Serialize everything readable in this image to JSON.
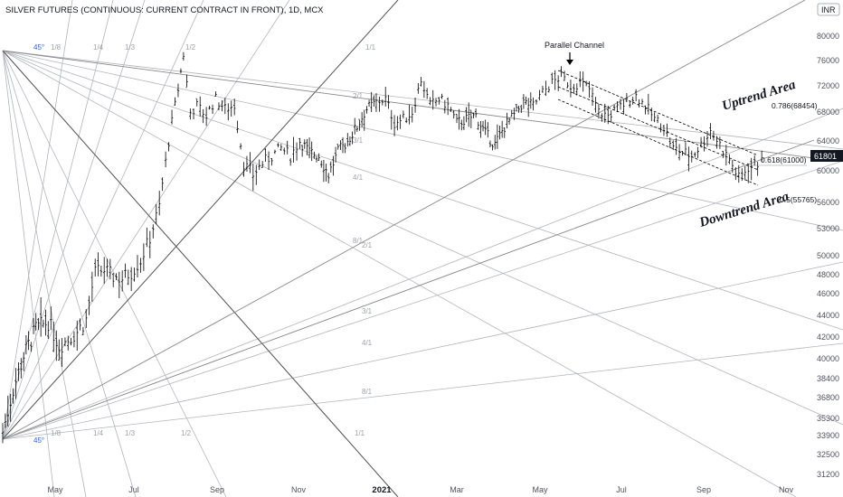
{
  "header": {
    "title": "SILVER FUTURES (CONTINUOUS: CURRENT CONTRACT IN FRONT), 1D, MCX",
    "currency": "INR"
  },
  "colors": {
    "bars": "#000000",
    "grid_lines": "#b2b5be",
    "price_tag_bg": "#131722",
    "fan_label": "#9ea2ad",
    "angle_label": "#2962ff"
  },
  "chart_data": {
    "type": "ohlc",
    "xlabel": "",
    "ylabel": "",
    "x_ticks": [
      "May",
      "Jul",
      "Sep",
      "Nov",
      "2021",
      "Mar",
      "May",
      "Jul",
      "Sep",
      "Nov"
    ],
    "y_ticks": [
      80000,
      76000,
      72000,
      68000,
      64000,
      60000,
      56000,
      53000,
      50000,
      48000,
      46000,
      44000,
      42000,
      40000,
      38400,
      36800,
      35300,
      33900,
      32500,
      31200
    ],
    "last_price": "61801",
    "price_path": [
      {
        "date": "2020-04-01",
        "close": 34200
      },
      {
        "date": "2020-04-07",
        "close": 37500
      },
      {
        "date": "2020-04-13",
        "close": 40300
      },
      {
        "date": "2020-04-20",
        "close": 42800
      },
      {
        "date": "2020-04-27",
        "close": 43400
      },
      {
        "date": "2020-05-04",
        "close": 41200
      },
      {
        "date": "2020-05-11",
        "close": 41800
      },
      {
        "date": "2020-05-18",
        "close": 42500
      },
      {
        "date": "2020-05-25",
        "close": 43600
      },
      {
        "date": "2020-06-01",
        "close": 48200
      },
      {
        "date": "2020-06-08",
        "close": 48500
      },
      {
        "date": "2020-06-15",
        "close": 47800
      },
      {
        "date": "2020-06-22",
        "close": 47600
      },
      {
        "date": "2020-06-29",
        "close": 48300
      },
      {
        "date": "2020-07-06",
        "close": 49500
      },
      {
        "date": "2020-07-13",
        "close": 52000
      },
      {
        "date": "2020-07-20",
        "close": 55500
      },
      {
        "date": "2020-07-27",
        "close": 64000
      },
      {
        "date": "2020-08-03",
        "close": 71500
      },
      {
        "date": "2020-08-07",
        "close": 77000
      },
      {
        "date": "2020-08-12",
        "close": 68000
      },
      {
        "date": "2020-08-17",
        "close": 69000
      },
      {
        "date": "2020-08-24",
        "close": 67500
      },
      {
        "date": "2020-08-31",
        "close": 70000
      },
      {
        "date": "2020-09-07",
        "close": 68500
      },
      {
        "date": "2020-09-14",
        "close": 69000
      },
      {
        "date": "2020-09-21",
        "close": 61000
      },
      {
        "date": "2020-09-28",
        "close": 59500
      },
      {
        "date": "2020-10-05",
        "close": 61000
      },
      {
        "date": "2020-10-12",
        "close": 62000
      },
      {
        "date": "2020-10-19",
        "close": 63000
      },
      {
        "date": "2020-10-26",
        "close": 62000
      },
      {
        "date": "2020-11-02",
        "close": 64000
      },
      {
        "date": "2020-11-09",
        "close": 62500
      },
      {
        "date": "2020-11-16",
        "close": 62000
      },
      {
        "date": "2020-11-23",
        "close": 59500
      },
      {
        "date": "2020-11-30",
        "close": 62500
      },
      {
        "date": "2020-12-07",
        "close": 64000
      },
      {
        "date": "2020-12-14",
        "close": 66000
      },
      {
        "date": "2020-12-21",
        "close": 68500
      },
      {
        "date": "2020-12-28",
        "close": 69500
      },
      {
        "date": "2021-01-04",
        "close": 70000
      },
      {
        "date": "2021-01-11",
        "close": 66500
      },
      {
        "date": "2021-01-18",
        "close": 67000
      },
      {
        "date": "2021-01-25",
        "close": 68000
      },
      {
        "date": "2021-02-01",
        "close": 73000
      },
      {
        "date": "2021-02-08",
        "close": 69000
      },
      {
        "date": "2021-02-15",
        "close": 70000
      },
      {
        "date": "2021-02-22",
        "close": 69000
      },
      {
        "date": "2021-03-01",
        "close": 66500
      },
      {
        "date": "2021-03-08",
        "close": 67000
      },
      {
        "date": "2021-03-15",
        "close": 67500
      },
      {
        "date": "2021-03-22",
        "close": 65000
      },
      {
        "date": "2021-03-29",
        "close": 63500
      },
      {
        "date": "2021-04-05",
        "close": 66000
      },
      {
        "date": "2021-04-12",
        "close": 67500
      },
      {
        "date": "2021-04-19",
        "close": 69500
      },
      {
        "date": "2021-04-26",
        "close": 69000
      },
      {
        "date": "2021-05-03",
        "close": 71000
      },
      {
        "date": "2021-05-10",
        "close": 72500
      },
      {
        "date": "2021-05-17",
        "close": 73500
      },
      {
        "date": "2021-05-24",
        "close": 72000
      },
      {
        "date": "2021-05-31",
        "close": 72500
      },
      {
        "date": "2021-06-07",
        "close": 71500
      },
      {
        "date": "2021-06-14",
        "close": 68000
      },
      {
        "date": "2021-06-21",
        "close": 67500
      },
      {
        "date": "2021-06-28",
        "close": 68500
      },
      {
        "date": "2021-07-05",
        "close": 69500
      },
      {
        "date": "2021-07-12",
        "close": 70500
      },
      {
        "date": "2021-07-19",
        "close": 69000
      },
      {
        "date": "2021-07-26",
        "close": 67000
      },
      {
        "date": "2021-08-02",
        "close": 66000
      },
      {
        "date": "2021-08-09",
        "close": 63000
      },
      {
        "date": "2021-08-16",
        "close": 62500
      },
      {
        "date": "2021-08-23",
        "close": 62000
      },
      {
        "date": "2021-08-30",
        "close": 63500
      },
      {
        "date": "2021-09-06",
        "close": 65500
      },
      {
        "date": "2021-09-13",
        "close": 63500
      },
      {
        "date": "2021-09-20",
        "close": 61500
      },
      {
        "date": "2021-09-27",
        "close": 59000
      },
      {
        "date": "2021-10-04",
        "close": 60500
      },
      {
        "date": "2021-10-11",
        "close": 61000
      },
      {
        "date": "2021-10-14",
        "close": 61801
      }
    ],
    "fib_levels": [
      {
        "label": "0.786(68454)"
      },
      {
        "label": "0.618(61000)"
      },
      {
        "label": "0.5(55765)"
      }
    ],
    "annotations": {
      "uptrend": "Uptrend Area",
      "downtrend": "Downtrend Area",
      "channel": "Parallel Channel"
    },
    "gann_labels": [
      "1/8",
      "1/4",
      "1/3",
      "1/2",
      "1/1",
      "2/1",
      "3/1",
      "4/1",
      "8/1"
    ],
    "gann_angle_label": "45°"
  }
}
